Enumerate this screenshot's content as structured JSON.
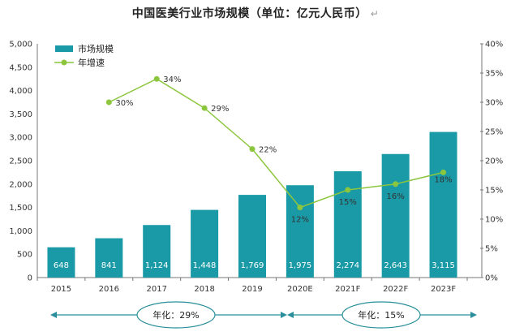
{
  "title": "中国医美行业市场规模（单位：亿元人民币）",
  "title_mark": "↵",
  "colors": {
    "bar": "#1a9aa6",
    "line": "#8cc63e",
    "arrow": "#2a8f9a",
    "axis": "#777777"
  },
  "legend": {
    "bar_label": "市场规模",
    "line_label": "年增速"
  },
  "annotations": {
    "cagr_left": "年化：29%",
    "cagr_right": "年化：15%"
  },
  "chart_data": {
    "type": "bar",
    "categories": [
      "2015",
      "2016",
      "2017",
      "2018",
      "2019",
      "2020E",
      "2021F",
      "2022F",
      "2023F"
    ],
    "series": [
      {
        "name": "市场规模",
        "type": "bar",
        "axis": "left",
        "values": [
          648,
          841,
          1124,
          1448,
          1769,
          1975,
          2274,
          2643,
          3115
        ],
        "labels": [
          "648",
          "841",
          "1,124",
          "1,448",
          "1,769",
          "1,975",
          "2,274",
          "2,643",
          "3,115"
        ]
      },
      {
        "name": "年增速",
        "type": "line",
        "axis": "right",
        "values": [
          null,
          30,
          34,
          29,
          22,
          12,
          15,
          16,
          18
        ],
        "labels": [
          "",
          "30%",
          "34%",
          "29%",
          "22%",
          "12%",
          "15%",
          "16%",
          "18%"
        ]
      }
    ],
    "y_left": {
      "lim": [
        0,
        5000
      ],
      "ticks": [
        "0",
        "500",
        "1,000",
        "1,500",
        "2,000",
        "2,500",
        "3,000",
        "3,500",
        "4,000",
        "4,500",
        "5,000"
      ]
    },
    "y_right": {
      "lim": [
        0,
        40
      ],
      "ticks": [
        "0%",
        "5%",
        "10%",
        "15%",
        "20%",
        "25%",
        "30%",
        "35%",
        "40%"
      ]
    },
    "legend_position": "top-left",
    "grid": false
  }
}
